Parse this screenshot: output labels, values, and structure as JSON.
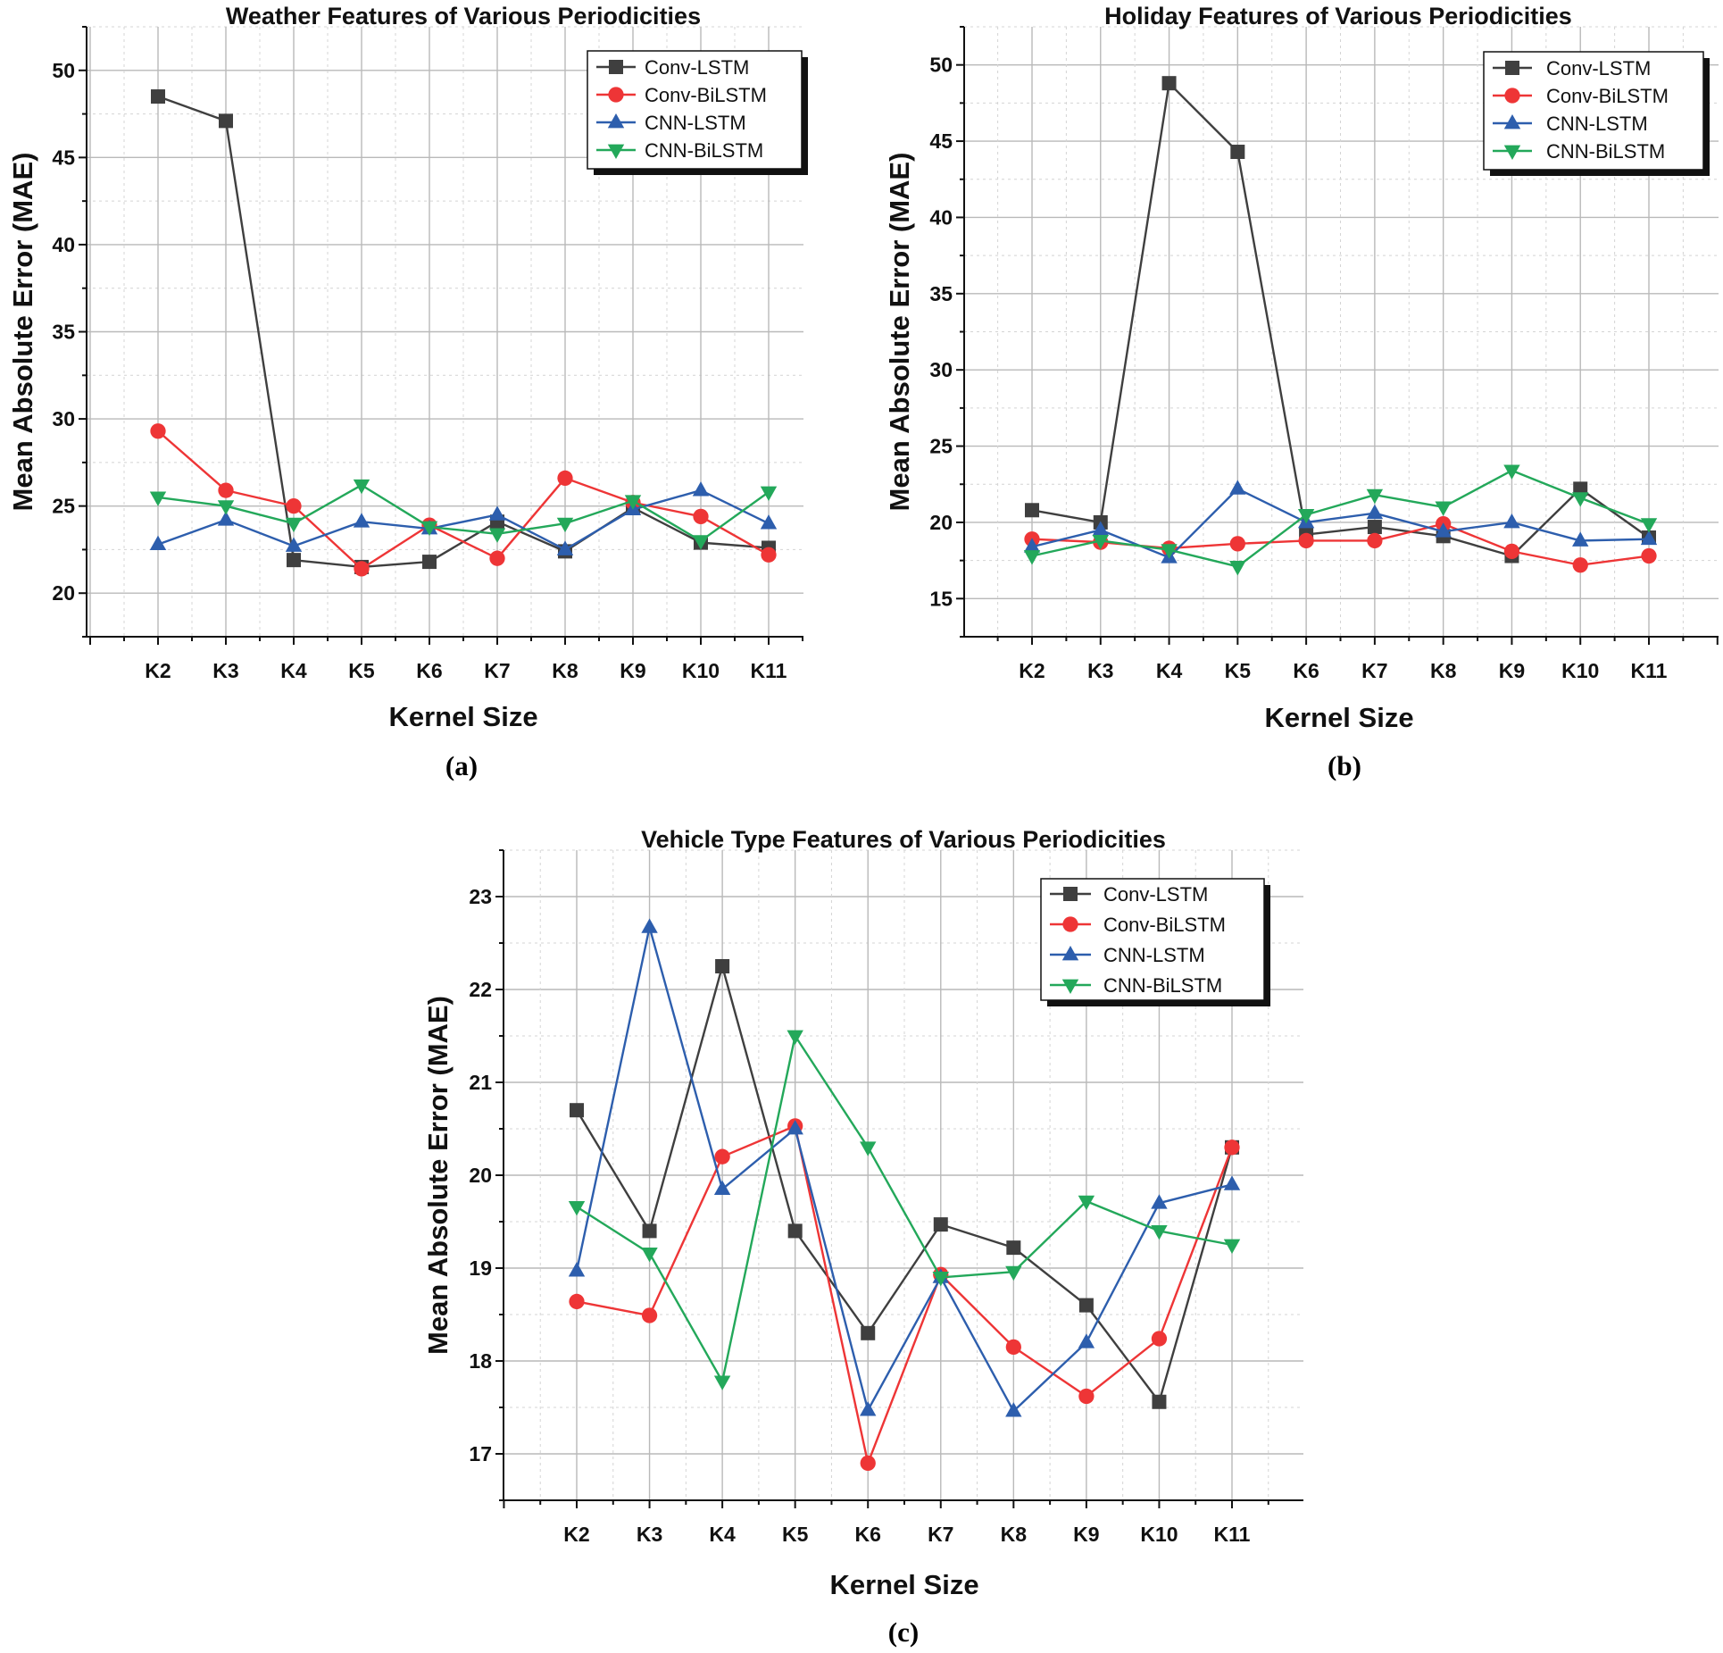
{
  "chart_data": [
    {
      "type": "line",
      "panel_label": "(a)",
      "title": "Weather Features of Various Periodicities",
      "xlabel": "Kernel Size",
      "ylabel": "Mean Absolute Error (MAE)",
      "categories": [
        "K2",
        "K3",
        "K4",
        "K5",
        "K6",
        "K7",
        "K8",
        "K9",
        "K10",
        "K11"
      ],
      "ylim": [
        17.5,
        52.5
      ],
      "yticks": [
        20,
        25,
        30,
        35,
        40,
        45,
        50
      ],
      "grid": true,
      "legend_position": "top-right",
      "series": [
        {
          "name": "Conv-LSTM",
          "color": "#3f3f3f",
          "marker": "square",
          "values": [
            48.5,
            47.1,
            21.9,
            21.5,
            21.8,
            24.1,
            22.4,
            24.9,
            22.9,
            22.6
          ]
        },
        {
          "name": "Conv-BiLSTM",
          "color": "#ee3536",
          "marker": "circle",
          "values": [
            29.3,
            25.9,
            25.0,
            21.4,
            23.9,
            22.0,
            26.6,
            25.2,
            24.4,
            22.2
          ]
        },
        {
          "name": "CNN-LSTM",
          "color": "#2d5ead",
          "marker": "triangle-up",
          "values": [
            22.8,
            24.2,
            22.7,
            24.1,
            23.7,
            24.5,
            22.5,
            24.8,
            25.9,
            24.0
          ]
        },
        {
          "name": "CNN-BiLSTM",
          "color": "#23a85a",
          "marker": "triangle-down",
          "values": [
            25.5,
            25.0,
            24.0,
            26.2,
            23.8,
            23.4,
            24.0,
            25.3,
            23.0,
            25.8
          ]
        }
      ]
    },
    {
      "type": "line",
      "panel_label": "(b)",
      "title": "Holiday Features of Various Periodicities",
      "xlabel": "Kernel Size",
      "ylabel": "Mean Absolute Error (MAE)",
      "categories": [
        "K2",
        "K3",
        "K4",
        "K5",
        "K6",
        "K7",
        "K8",
        "K9",
        "K10",
        "K11"
      ],
      "ylim": [
        12.5,
        52.5
      ],
      "yticks": [
        15,
        20,
        25,
        30,
        35,
        40,
        45,
        50
      ],
      "grid": true,
      "legend_position": "top-right",
      "series": [
        {
          "name": "Conv-LSTM",
          "color": "#3f3f3f",
          "marker": "square",
          "values": [
            20.8,
            20.0,
            48.8,
            44.3,
            19.2,
            19.7,
            19.1,
            17.8,
            22.2,
            19.0
          ]
        },
        {
          "name": "Conv-BiLSTM",
          "color": "#ee3536",
          "marker": "circle",
          "values": [
            18.9,
            18.7,
            18.3,
            18.6,
            18.8,
            18.8,
            19.9,
            18.1,
            17.2,
            17.8
          ]
        },
        {
          "name": "CNN-LSTM",
          "color": "#2d5ead",
          "marker": "triangle-up",
          "values": [
            18.4,
            19.5,
            17.7,
            22.2,
            20.0,
            20.6,
            19.4,
            20.0,
            18.8,
            18.9
          ]
        },
        {
          "name": "CNN-BiLSTM",
          "color": "#23a85a",
          "marker": "triangle-down",
          "values": [
            17.8,
            18.8,
            18.2,
            17.1,
            20.5,
            21.8,
            21.0,
            23.4,
            21.6,
            19.9
          ]
        }
      ]
    },
    {
      "type": "line",
      "panel_label": "(c)",
      "title": "Vehicle Type Features of Various Periodicities",
      "xlabel": "Kernel Size",
      "ylabel": "Mean Absolute Error (MAE)",
      "categories": [
        "K2",
        "K3",
        "K4",
        "K5",
        "K6",
        "K7",
        "K8",
        "K9",
        "K10",
        "K11"
      ],
      "ylim": [
        16.5,
        23.5
      ],
      "yticks": [
        17,
        18,
        19,
        20,
        21,
        22,
        23
      ],
      "grid": true,
      "legend_position": "top-right",
      "series": [
        {
          "name": "Conv-LSTM",
          "color": "#3f3f3f",
          "marker": "square",
          "values": [
            20.7,
            19.4,
            22.25,
            19.4,
            18.3,
            19.47,
            19.22,
            18.6,
            17.56,
            20.3
          ]
        },
        {
          "name": "Conv-BiLSTM",
          "color": "#ee3536",
          "marker": "circle",
          "values": [
            18.64,
            18.49,
            20.2,
            20.53,
            16.9,
            18.93,
            18.15,
            17.62,
            18.24,
            20.3
          ]
        },
        {
          "name": "CNN-LSTM",
          "color": "#2d5ead",
          "marker": "triangle-up",
          "values": [
            18.97,
            22.67,
            19.85,
            20.5,
            17.47,
            18.9,
            17.46,
            18.2,
            19.7,
            19.9
          ]
        },
        {
          "name": "CNN-BiLSTM",
          "color": "#23a85a",
          "marker": "triangle-down",
          "values": [
            19.66,
            19.16,
            17.78,
            21.5,
            20.3,
            18.9,
            18.96,
            19.72,
            19.4,
            19.25
          ]
        }
      ]
    }
  ]
}
